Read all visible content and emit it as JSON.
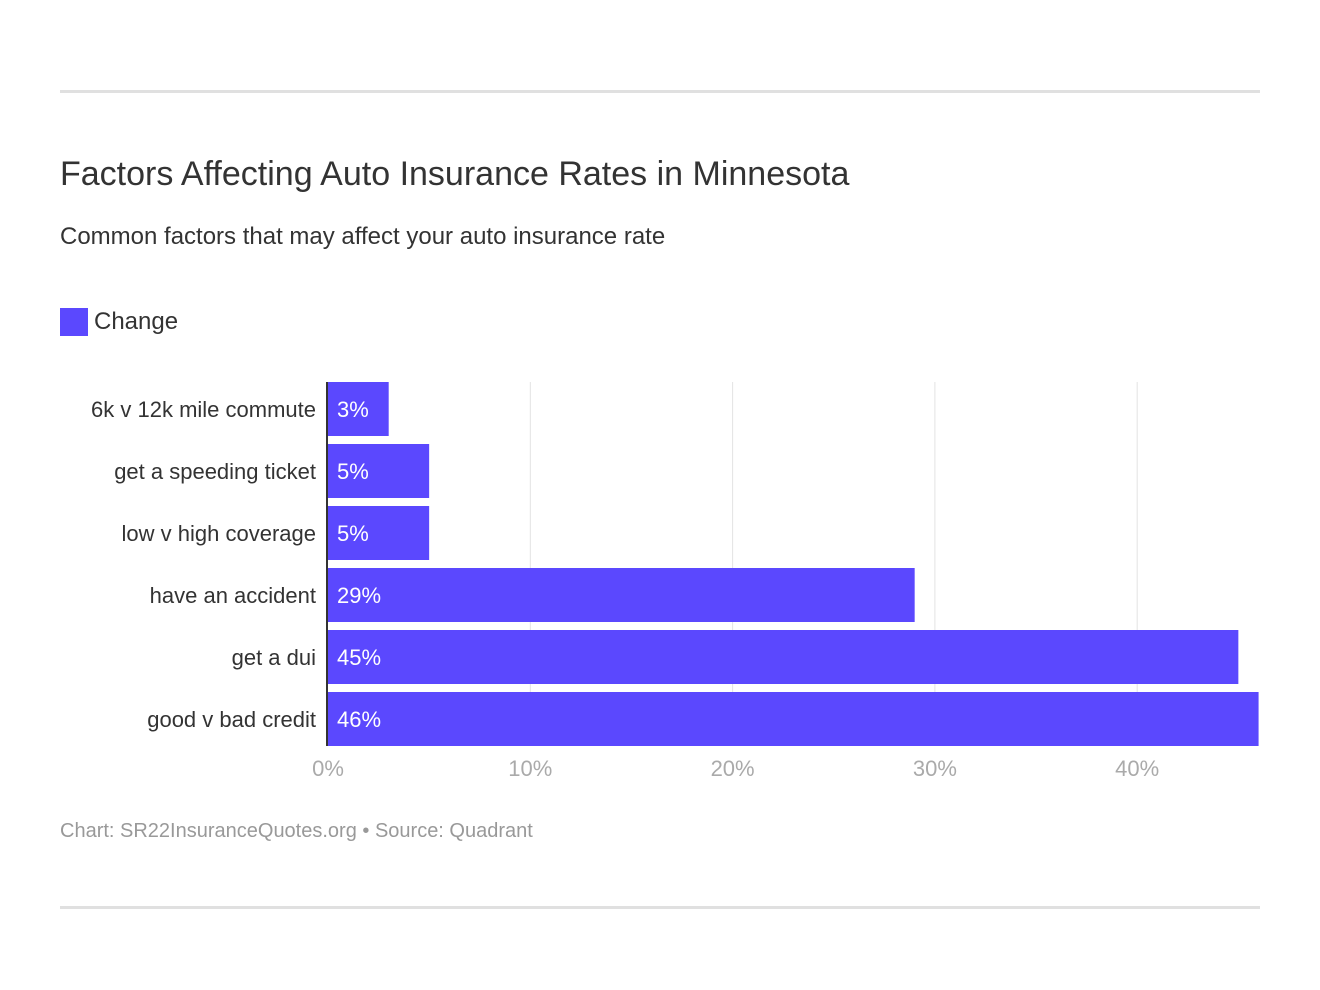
{
  "title": "Factors Affecting Auto Insurance Rates in Minnesota",
  "subtitle": "Common factors that may affect your auto insurance rate",
  "footer": "Chart: SR22InsuranceQuotes.org • Source: Quadrant",
  "chart_data": {
    "type": "bar",
    "orientation": "horizontal",
    "categories": [
      "6k v 12k mile commute",
      "get a speeding ticket",
      "low v high coverage",
      "have an accident",
      "get a dui",
      "good v bad credit"
    ],
    "series": [
      {
        "name": "Change",
        "values": [
          3,
          5,
          5,
          29,
          45,
          46
        ],
        "labels": [
          "3%",
          "5%",
          "5%",
          "29%",
          "45%",
          "46%"
        ],
        "color": "#5b48fe"
      }
    ],
    "xlim": [
      0,
      46
    ],
    "xticks": [
      0,
      10,
      20,
      30,
      40
    ],
    "xtick_labels": [
      "0%",
      "10%",
      "20%",
      "30%",
      "40%"
    ],
    "grid": true,
    "legend": "top-left"
  }
}
